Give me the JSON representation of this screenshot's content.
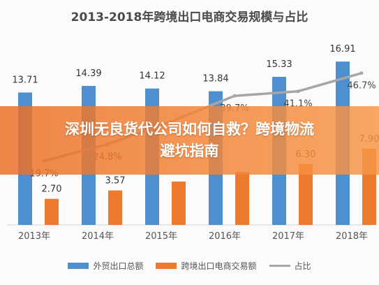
{
  "chart_data": {
    "type": "bar",
    "title": "2013-2018年跨境出口电商交易规模与占比",
    "categories": [
      "2013年",
      "2014年",
      "2015年",
      "2016年",
      "2017年",
      "2018年"
    ],
    "series": [
      {
        "name": "外贸出口总额",
        "kind": "bar",
        "axis": "left",
        "color": "#4e8fd0",
        "values": [
          13.71,
          14.39,
          14.12,
          13.84,
          15.33,
          16.91
        ],
        "labels": [
          "13.71",
          "14.39",
          "14.12",
          "13.84",
          "15.33",
          "16.91"
        ]
      },
      {
        "name": "跨境出口电商交易额",
        "kind": "bar",
        "axis": "left",
        "color": "#ee7a2e",
        "values": [
          2.7,
          3.57,
          4.49,
          5.5,
          6.3,
          7.9
        ],
        "labels": [
          "2.70",
          "3.57",
          "",
          "",
          "6.30",
          "7.90"
        ]
      },
      {
        "name": "占比",
        "kind": "line",
        "axis": "right",
        "unit": "%",
        "color": "#a6a6a6",
        "values": [
          19.7,
          24.8,
          31.8,
          39.7,
          41.1,
          46.7
        ],
        "labels": [
          "19.7%",
          "24.8%",
          "",
          "39.7%",
          "41.1%",
          "46.7%"
        ]
      }
    ],
    "ylim": [
      0,
      17.5
    ],
    "y2lim": [
      0,
      52
    ],
    "grid": false,
    "legend": "bottom"
  },
  "overlay": {
    "headline": "深圳无良货代公司如何自救？跨境物流避坑指南"
  }
}
